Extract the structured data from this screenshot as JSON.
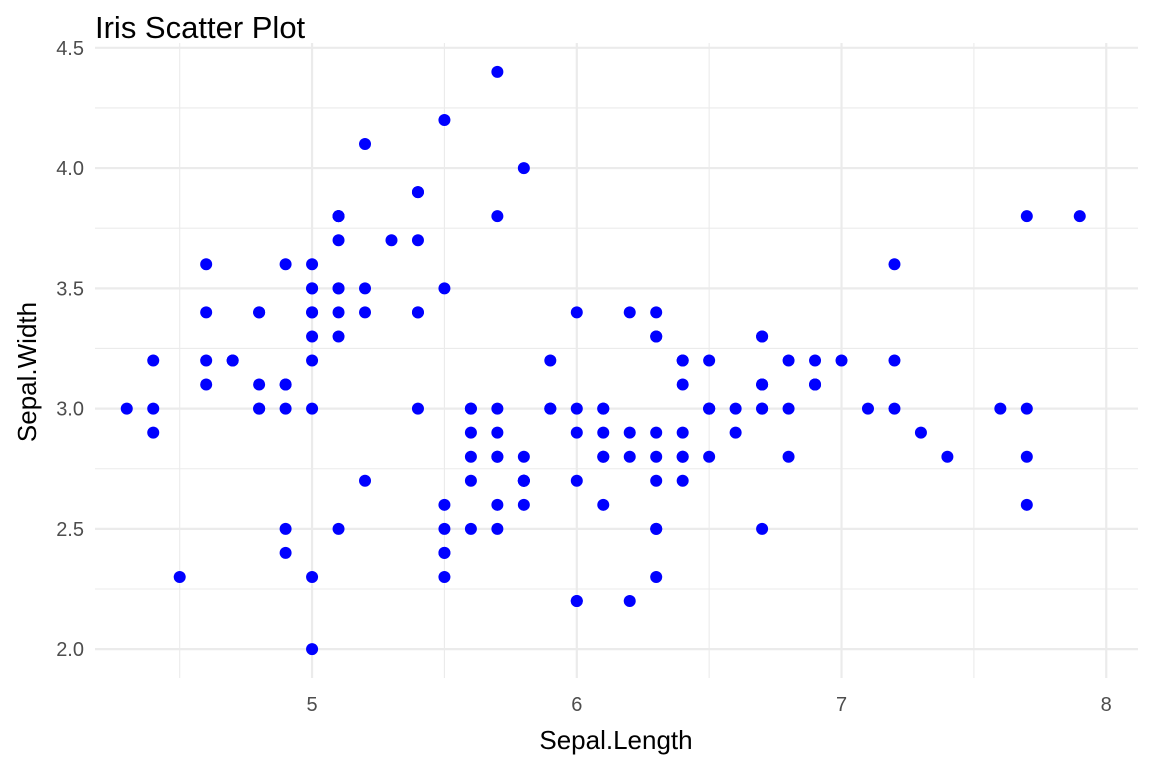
{
  "chart_data": {
    "type": "scatter",
    "title": "Iris Scatter Plot",
    "xlabel": "Sepal.Length",
    "ylabel": "Sepal.Width",
    "xlim": [
      4.18,
      8.12
    ],
    "ylim": [
      1.88,
      4.52
    ],
    "x_ticks": [
      5,
      6,
      7,
      8
    ],
    "x_tick_labels": [
      "5",
      "6",
      "7",
      "8"
    ],
    "y_ticks": [
      2.0,
      2.5,
      3.0,
      3.5,
      4.0,
      4.5
    ],
    "y_tick_labels": [
      "2.0",
      "2.5",
      "3.0",
      "3.5",
      "4.0",
      "4.5"
    ],
    "x_minor_ticks": [
      4.5,
      5.5,
      6.5,
      7.5
    ],
    "y_minor_ticks": [
      2.25,
      2.75,
      3.25,
      3.75,
      4.25
    ],
    "grid": true,
    "legend": "none",
    "point_color": "#0000ff",
    "points": [
      [
        5.1,
        3.5
      ],
      [
        4.9,
        3.0
      ],
      [
        4.7,
        3.2
      ],
      [
        4.6,
        3.1
      ],
      [
        5.0,
        3.6
      ],
      [
        5.4,
        3.9
      ],
      [
        4.6,
        3.4
      ],
      [
        5.0,
        3.4
      ],
      [
        4.4,
        2.9
      ],
      [
        4.9,
        3.1
      ],
      [
        5.4,
        3.7
      ],
      [
        4.8,
        3.4
      ],
      [
        4.8,
        3.0
      ],
      [
        4.3,
        3.0
      ],
      [
        5.8,
        4.0
      ],
      [
        5.7,
        4.4
      ],
      [
        5.4,
        3.9
      ],
      [
        5.1,
        3.5
      ],
      [
        5.7,
        3.8
      ],
      [
        5.1,
        3.8
      ],
      [
        5.4,
        3.4
      ],
      [
        5.1,
        3.7
      ],
      [
        4.6,
        3.6
      ],
      [
        5.1,
        3.3
      ],
      [
        4.8,
        3.4
      ],
      [
        5.0,
        3.0
      ],
      [
        5.0,
        3.4
      ],
      [
        5.2,
        3.5
      ],
      [
        5.2,
        3.4
      ],
      [
        4.7,
        3.2
      ],
      [
        4.8,
        3.1
      ],
      [
        5.4,
        3.4
      ],
      [
        5.2,
        4.1
      ],
      [
        5.5,
        4.2
      ],
      [
        4.9,
        3.1
      ],
      [
        5.0,
        3.2
      ],
      [
        5.5,
        3.5
      ],
      [
        4.9,
        3.6
      ],
      [
        4.4,
        3.0
      ],
      [
        5.1,
        3.4
      ],
      [
        5.0,
        3.5
      ],
      [
        4.5,
        2.3
      ],
      [
        4.4,
        3.2
      ],
      [
        5.0,
        3.5
      ],
      [
        5.1,
        3.8
      ],
      [
        4.8,
        3.0
      ],
      [
        5.1,
        3.8
      ],
      [
        4.6,
        3.2
      ],
      [
        5.3,
        3.7
      ],
      [
        5.0,
        3.3
      ],
      [
        7.0,
        3.2
      ],
      [
        6.4,
        3.2
      ],
      [
        6.9,
        3.1
      ],
      [
        5.5,
        2.3
      ],
      [
        6.5,
        2.8
      ],
      [
        5.7,
        2.8
      ],
      [
        6.3,
        3.3
      ],
      [
        4.9,
        2.4
      ],
      [
        6.6,
        2.9
      ],
      [
        5.2,
        2.7
      ],
      [
        5.0,
        2.0
      ],
      [
        5.9,
        3.0
      ],
      [
        6.0,
        2.2
      ],
      [
        6.1,
        2.9
      ],
      [
        5.6,
        2.9
      ],
      [
        6.7,
        3.1
      ],
      [
        5.6,
        3.0
      ],
      [
        5.8,
        2.7
      ],
      [
        6.2,
        2.2
      ],
      [
        5.6,
        2.5
      ],
      [
        5.9,
        3.2
      ],
      [
        6.1,
        2.8
      ],
      [
        6.3,
        2.5
      ],
      [
        6.1,
        2.8
      ],
      [
        6.4,
        2.9
      ],
      [
        6.6,
        3.0
      ],
      [
        6.8,
        2.8
      ],
      [
        6.7,
        3.0
      ],
      [
        6.0,
        2.9
      ],
      [
        5.7,
        2.6
      ],
      [
        5.5,
        2.4
      ],
      [
        5.5,
        2.4
      ],
      [
        5.8,
        2.7
      ],
      [
        6.0,
        2.7
      ],
      [
        5.4,
        3.0
      ],
      [
        6.0,
        3.4
      ],
      [
        6.7,
        3.1
      ],
      [
        6.3,
        2.3
      ],
      [
        5.6,
        3.0
      ],
      [
        5.5,
        2.5
      ],
      [
        5.5,
        2.6
      ],
      [
        6.1,
        3.0
      ],
      [
        5.8,
        2.6
      ],
      [
        5.0,
        2.3
      ],
      [
        5.6,
        2.7
      ],
      [
        5.7,
        3.0
      ],
      [
        5.7,
        2.9
      ],
      [
        6.2,
        2.9
      ],
      [
        5.1,
        2.5
      ],
      [
        5.7,
        2.8
      ],
      [
        6.3,
        3.3
      ],
      [
        5.8,
        2.7
      ],
      [
        7.1,
        3.0
      ],
      [
        6.3,
        2.9
      ],
      [
        6.5,
        3.0
      ],
      [
        7.6,
        3.0
      ],
      [
        4.9,
        2.5
      ],
      [
        7.3,
        2.9
      ],
      [
        6.7,
        2.5
      ],
      [
        7.2,
        3.6
      ],
      [
        6.5,
        3.2
      ],
      [
        6.4,
        2.7
      ],
      [
        6.8,
        3.0
      ],
      [
        5.7,
        2.5
      ],
      [
        5.8,
        2.8
      ],
      [
        6.4,
        3.2
      ],
      [
        6.5,
        3.0
      ],
      [
        7.7,
        3.8
      ],
      [
        7.7,
        2.6
      ],
      [
        6.0,
        2.2
      ],
      [
        6.9,
        3.2
      ],
      [
        5.6,
        2.8
      ],
      [
        7.7,
        2.8
      ],
      [
        6.3,
        2.7
      ],
      [
        6.7,
        3.3
      ],
      [
        7.2,
        3.2
      ],
      [
        6.2,
        2.8
      ],
      [
        6.1,
        3.0
      ],
      [
        6.4,
        2.8
      ],
      [
        7.2,
        3.0
      ],
      [
        7.4,
        2.8
      ],
      [
        7.9,
        3.8
      ],
      [
        6.4,
        2.8
      ],
      [
        6.3,
        2.8
      ],
      [
        6.1,
        2.6
      ],
      [
        7.7,
        3.0
      ],
      [
        6.3,
        3.4
      ],
      [
        6.4,
        3.1
      ],
      [
        6.0,
        3.0
      ],
      [
        6.9,
        3.1
      ],
      [
        6.7,
        3.1
      ],
      [
        6.9,
        3.1
      ],
      [
        5.8,
        2.7
      ],
      [
        6.8,
        3.2
      ],
      [
        6.7,
        3.3
      ],
      [
        6.7,
        3.0
      ],
      [
        6.3,
        2.5
      ],
      [
        6.5,
        3.0
      ],
      [
        6.2,
        3.4
      ],
      [
        5.9,
        3.0
      ]
    ]
  }
}
